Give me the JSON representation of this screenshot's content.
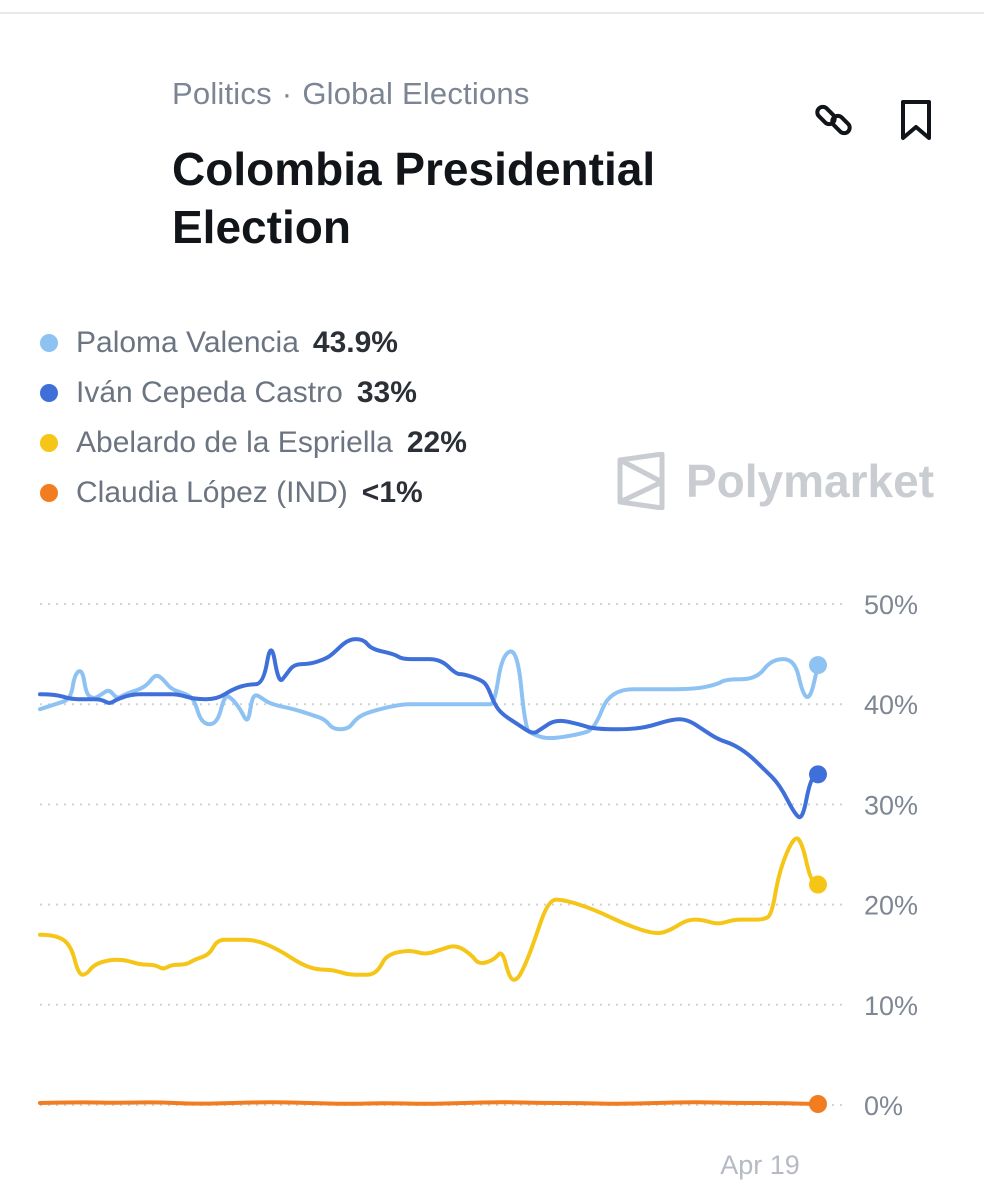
{
  "header": {
    "category": "Politics",
    "subcategory": "Global Elections",
    "title": "Colombia Presidential Election",
    "flag_colors": [
      "#FCD116",
      "#003893",
      "#CE1126"
    ],
    "actions": [
      {
        "name": "link-icon"
      },
      {
        "name": "bookmark-icon"
      }
    ]
  },
  "legend": [
    {
      "name": "Paloma Valencia",
      "value": "43.9%",
      "color": "#8dc2f3"
    },
    {
      "name": "Iván Cepeda Castro",
      "value": "33%",
      "color": "#3f6fd9"
    },
    {
      "name": "Abelardo de la Espriella",
      "value": "22%",
      "color": "#f5c518"
    },
    {
      "name": "Claudia López (IND)",
      "value": "<1%",
      "color": "#f27d21"
    }
  ],
  "watermark": "Polymarket",
  "chart_data": {
    "type": "line",
    "x_label": "Apr 19",
    "y_ticks": [
      "50%",
      "40%",
      "30%",
      "20%",
      "10%",
      "0%"
    ],
    "ylim": [
      0,
      50
    ],
    "grid": true,
    "series": [
      {
        "name": "Paloma Valencia",
        "color": "#8dc2f3",
        "values": [
          [
            0,
            39.5
          ],
          [
            2,
            40
          ],
          [
            4,
            40.5
          ],
          [
            4.5,
            43
          ],
          [
            5.5,
            43.5
          ],
          [
            6,
            41
          ],
          [
            7,
            40.5
          ],
          [
            8,
            41
          ],
          [
            9,
            41.5
          ],
          [
            10,
            40.5
          ],
          [
            11,
            41
          ],
          [
            13,
            41.5
          ],
          [
            14,
            42
          ],
          [
            15,
            43
          ],
          [
            16,
            42.5
          ],
          [
            17,
            41.5
          ],
          [
            19,
            41
          ],
          [
            20,
            40.5
          ],
          [
            21,
            38
          ],
          [
            23,
            38
          ],
          [
            24,
            41
          ],
          [
            25,
            40.5
          ],
          [
            26,
            39.5
          ],
          [
            27,
            38
          ],
          [
            27.5,
            40.5
          ],
          [
            28,
            41
          ],
          [
            29,
            40.5
          ],
          [
            30,
            40
          ],
          [
            33,
            39.5
          ],
          [
            35,
            39
          ],
          [
            37,
            38.5
          ],
          [
            38,
            37.5
          ],
          [
            40,
            37.5
          ],
          [
            41,
            38.5
          ],
          [
            42,
            39
          ],
          [
            44,
            39.5
          ],
          [
            47,
            40
          ],
          [
            49,
            40
          ],
          [
            51,
            40
          ],
          [
            53,
            40
          ],
          [
            55,
            40
          ],
          [
            58,
            40
          ],
          [
            59,
            40
          ],
          [
            60,
            45
          ],
          [
            62,
            45.5
          ],
          [
            63,
            37.5
          ],
          [
            64,
            37
          ],
          [
            66,
            36.5
          ],
          [
            70,
            37
          ],
          [
            72,
            37.5
          ],
          [
            74,
            41.5
          ],
          [
            80,
            41.5
          ],
          [
            85,
            41.5
          ],
          [
            88,
            42
          ],
          [
            89,
            42.5
          ],
          [
            93,
            42.5
          ],
          [
            95,
            44.5
          ],
          [
            98,
            44.5
          ],
          [
            99,
            41
          ],
          [
            100,
            40.5
          ],
          [
            101,
            43.9
          ]
        ]
      },
      {
        "name": "Iván Cepeda Castro",
        "color": "#3f6fd9",
        "values": [
          [
            0,
            41
          ],
          [
            2,
            41
          ],
          [
            4,
            40.5
          ],
          [
            6,
            40.5
          ],
          [
            8,
            40.5
          ],
          [
            9,
            40
          ],
          [
            10,
            40.5
          ],
          [
            12,
            41
          ],
          [
            14,
            41
          ],
          [
            16,
            41
          ],
          [
            18,
            41
          ],
          [
            20,
            40.5
          ],
          [
            23,
            40.5
          ],
          [
            25,
            41.5
          ],
          [
            27,
            42
          ],
          [
            29,
            42
          ],
          [
            30,
            46.5
          ],
          [
            31,
            42
          ],
          [
            32,
            43
          ],
          [
            33,
            44
          ],
          [
            35,
            44
          ],
          [
            37,
            44.5
          ],
          [
            38,
            45
          ],
          [
            40,
            46.5
          ],
          [
            42,
            46.5
          ],
          [
            43,
            45.5
          ],
          [
            46,
            45
          ],
          [
            47,
            44.5
          ],
          [
            49,
            44.5
          ],
          [
            52,
            44.5
          ],
          [
            54,
            43
          ],
          [
            55,
            43
          ],
          [
            57,
            42.5
          ],
          [
            58,
            42
          ],
          [
            59,
            40
          ],
          [
            60,
            39
          ],
          [
            62,
            38
          ],
          [
            64,
            37
          ],
          [
            65,
            37.5
          ],
          [
            67,
            38.5
          ],
          [
            70,
            38
          ],
          [
            72,
            37.5
          ],
          [
            78,
            37.5
          ],
          [
            82,
            38.5
          ],
          [
            84,
            38.5
          ],
          [
            86,
            37.5
          ],
          [
            88,
            36.5
          ],
          [
            90,
            36
          ],
          [
            92,
            35
          ],
          [
            94,
            33.5
          ],
          [
            96,
            32
          ],
          [
            98,
            29
          ],
          [
            99,
            28.5
          ],
          [
            100,
            32.5
          ],
          [
            101,
            33
          ]
        ]
      },
      {
        "name": "Abelardo de la Espriella",
        "color": "#f5c518",
        "values": [
          [
            0,
            17
          ],
          [
            2,
            17
          ],
          [
            4,
            16
          ],
          [
            5,
            13
          ],
          [
            6,
            13
          ],
          [
            7,
            14
          ],
          [
            9,
            14.5
          ],
          [
            11,
            14.5
          ],
          [
            13,
            14
          ],
          [
            15,
            14
          ],
          [
            16,
            13.5
          ],
          [
            17,
            14
          ],
          [
            19,
            14
          ],
          [
            20,
            14.5
          ],
          [
            22,
            15
          ],
          [
            23,
            16.5
          ],
          [
            25,
            16.5
          ],
          [
            28,
            16.5
          ],
          [
            31,
            15.5
          ],
          [
            34,
            14
          ],
          [
            36,
            13.5
          ],
          [
            38,
            13.5
          ],
          [
            40,
            13
          ],
          [
            42,
            13
          ],
          [
            43,
            13
          ],
          [
            44,
            13.5
          ],
          [
            45,
            15
          ],
          [
            48,
            15.5
          ],
          [
            50,
            15
          ],
          [
            52,
            15.5
          ],
          [
            54,
            16
          ],
          [
            56,
            15
          ],
          [
            57,
            14
          ],
          [
            59,
            14.5
          ],
          [
            60,
            15.5
          ],
          [
            61,
            12.5
          ],
          [
            62,
            12.5
          ],
          [
            63,
            14
          ],
          [
            64,
            16
          ],
          [
            66,
            20.5
          ],
          [
            68,
            20.5
          ],
          [
            72,
            19.5
          ],
          [
            76,
            18
          ],
          [
            80,
            17
          ],
          [
            82,
            17.5
          ],
          [
            84,
            18.5
          ],
          [
            86,
            18.5
          ],
          [
            88,
            18
          ],
          [
            90,
            18.5
          ],
          [
            92,
            18.5
          ],
          [
            94,
            18.5
          ],
          [
            95,
            19
          ],
          [
            96,
            23.5
          ],
          [
            98,
            27
          ],
          [
            99,
            26
          ],
          [
            100,
            22.5
          ],
          [
            101,
            22
          ]
        ]
      },
      {
        "name": "Claudia López (IND)",
        "color": "#f27d21",
        "values": [
          [
            0,
            0.2
          ],
          [
            5,
            0.3
          ],
          [
            10,
            0.2
          ],
          [
            15,
            0.3
          ],
          [
            20,
            0.1
          ],
          [
            25,
            0.2
          ],
          [
            30,
            0.3
          ],
          [
            35,
            0.2
          ],
          [
            40,
            0.1
          ],
          [
            45,
            0.2
          ],
          [
            50,
            0.1
          ],
          [
            55,
            0.2
          ],
          [
            60,
            0.3
          ],
          [
            65,
            0.2
          ],
          [
            70,
            0.2
          ],
          [
            75,
            0.1
          ],
          [
            80,
            0.2
          ],
          [
            85,
            0.3
          ],
          [
            90,
            0.2
          ],
          [
            95,
            0.2
          ],
          [
            101,
            0.1
          ]
        ]
      }
    ]
  }
}
